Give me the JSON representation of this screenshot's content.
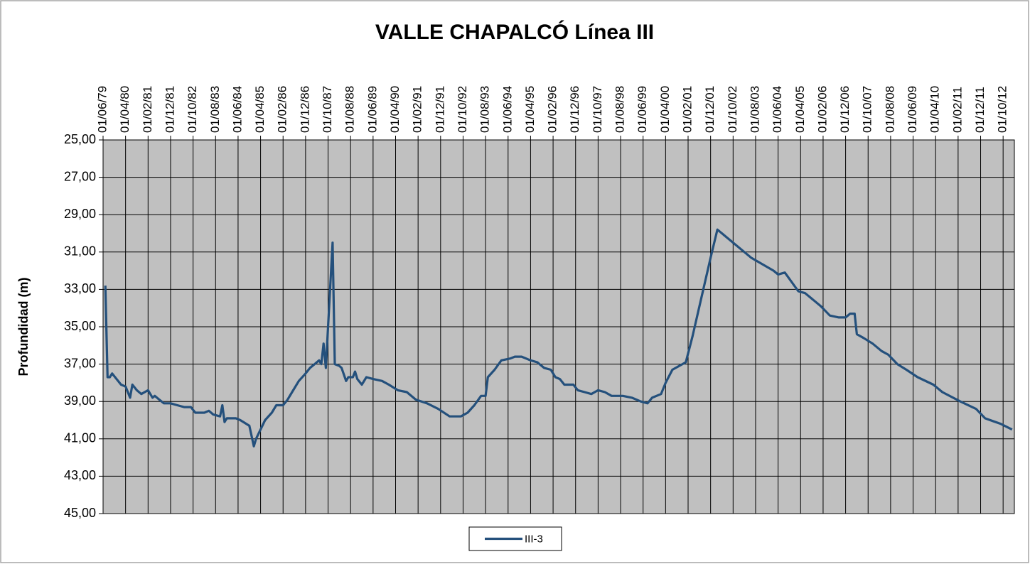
{
  "chart_data": {
    "type": "line",
    "title": "VALLE CHAPALCÓ Línea III",
    "y_label": "Profundidad (m)",
    "y_reversed": true,
    "grid": true,
    "legend": "bottom",
    "ylim": [
      25,
      45
    ],
    "yticks": [
      {
        "value": 25,
        "label": "25,00"
      },
      {
        "value": 27,
        "label": "27,00"
      },
      {
        "value": 29,
        "label": "29,00"
      },
      {
        "value": 31,
        "label": "31,00"
      },
      {
        "value": 33,
        "label": "33,00"
      },
      {
        "value": 35,
        "label": "35,00"
      },
      {
        "value": 37,
        "label": "37,00"
      },
      {
        "value": 39,
        "label": "39,00"
      },
      {
        "value": 41,
        "label": "41,00"
      },
      {
        "value": 43,
        "label": "43,00"
      },
      {
        "value": 45,
        "label": "45,00"
      }
    ],
    "xlim": [
      "01/06/79",
      "01/03/13"
    ],
    "xticks": [
      "01/06/79",
      "01/04/80",
      "01/02/81",
      "01/12/81",
      "01/10/82",
      "01/08/83",
      "01/06/84",
      "01/04/85",
      "01/02/86",
      "01/12/86",
      "01/10/87",
      "01/08/88",
      "01/06/89",
      "01/04/90",
      "01/02/91",
      "01/12/91",
      "01/10/92",
      "01/08/93",
      "01/06/94",
      "01/04/95",
      "01/02/96",
      "01/12/96",
      "01/10/97",
      "01/08/98",
      "01/06/99",
      "01/04/00",
      "01/02/01",
      "01/12/01",
      "01/10/02",
      "01/08/03",
      "01/06/04",
      "01/04/05",
      "01/02/06",
      "01/12/06",
      "01/10/07",
      "01/08/08",
      "01/06/09",
      "01/04/10",
      "01/02/11",
      "01/12/11",
      "01/10/12"
    ],
    "x": [
      "01/07/79",
      "01/08/79",
      "01/09/79",
      "01/10/79",
      "01/12/79",
      "01/02/80",
      "01/04/80",
      "01/06/80",
      "01/07/80",
      "01/09/80",
      "01/11/80",
      "01/02/81",
      "01/04/81",
      "01/05/81",
      "01/07/81",
      "01/09/81",
      "01/12/81",
      "01/03/82",
      "01/06/82",
      "01/09/82",
      "01/11/82",
      "01/03/83",
      "01/05/83",
      "01/07/83",
      "01/10/83",
      "01/11/83",
      "01/12/83",
      "01/01/84",
      "01/05/84",
      "01/07/84",
      "01/11/84",
      "01/01/85",
      "01/02/85",
      "01/06/85",
      "01/09/85",
      "01/11/85",
      "01/02/86",
      "01/04/86",
      "01/06/86",
      "01/09/86",
      "01/12/86",
      "01/02/87",
      "01/04/87",
      "01/06/87",
      "01/07/87",
      "01/08/87",
      "01/09/87",
      "01/12/87",
      "01/01/88",
      "01/03/88",
      "01/04/88",
      "01/06/88",
      "01/07/88",
      "01/09/88",
      "01/10/88",
      "01/11/88",
      "01/01/89",
      "01/03/89",
      "01/06/89",
      "01/10/89",
      "01/01/90",
      "01/05/90",
      "01/09/90",
      "01/01/91",
      "01/06/91",
      "01/11/91",
      "01/04/92",
      "01/09/92",
      "01/12/92",
      "01/03/93",
      "01/06/93",
      "01/08/93",
      "01/09/93",
      "01/12/93",
      "01/03/94",
      "01/07/94",
      "01/09/94",
      "01/12/94",
      "01/04/95",
      "01/07/95",
      "01/10/95",
      "01/01/96",
      "01/03/96",
      "01/05/96",
      "01/07/96",
      "01/11/96",
      "01/01/97",
      "01/04/97",
      "01/07/97",
      "01/10/97",
      "01/01/98",
      "01/04/98",
      "01/09/98",
      "01/01/99",
      "01/05/99",
      "01/08/99",
      "01/10/99",
      "01/02/00",
      "01/04/00",
      "01/07/00",
      "01/01/01",
      "01/04/01",
      "01/08/01",
      "01/12/01",
      "01/03/02",
      "01/06/02",
      "01/06/03",
      "01/04/04",
      "01/06/04",
      "01/09/04",
      "01/03/05",
      "01/06/05",
      "01/10/05",
      "01/01/06",
      "01/05/06",
      "01/09/06",
      "01/12/06",
      "01/02/07",
      "01/04/07",
      "01/05/07",
      "01/08/07",
      "01/12/07",
      "01/04/08",
      "01/07/08",
      "01/11/08",
      "01/03/09",
      "01/08/09",
      "01/03/10",
      "01/07/10",
      "01/03/11",
      "01/10/11",
      "01/02/12",
      "01/09/12",
      "01/02/13"
    ],
    "series": [
      {
        "name": "III-3",
        "color": "#24507c",
        "values": [
          32.8,
          37.7,
          37.7,
          37.5,
          37.8,
          38.1,
          38.2,
          38.8,
          38.1,
          38.4,
          38.6,
          38.4,
          38.8,
          38.7,
          38.9,
          39.1,
          39.1,
          39.2,
          39.3,
          39.3,
          39.6,
          39.6,
          39.5,
          39.7,
          39.8,
          39.2,
          40.1,
          39.9,
          39.9,
          40.0,
          40.3,
          41.4,
          41.0,
          40.0,
          39.6,
          39.2,
          39.2,
          38.9,
          38.5,
          37.9,
          37.5,
          37.2,
          37.0,
          36.8,
          37.0,
          35.9,
          37.2,
          30.5,
          37.0,
          37.1,
          37.2,
          37.9,
          37.7,
          37.7,
          37.4,
          37.8,
          38.1,
          37.7,
          37.8,
          37.9,
          38.1,
          38.4,
          38.5,
          38.9,
          39.1,
          39.4,
          39.8,
          39.8,
          39.6,
          39.2,
          38.7,
          38.7,
          37.7,
          37.3,
          36.8,
          36.7,
          36.6,
          36.6,
          36.8,
          36.9,
          37.2,
          37.3,
          37.7,
          37.8,
          38.1,
          38.1,
          38.4,
          38.5,
          38.6,
          38.4,
          38.5,
          38.7,
          38.7,
          38.8,
          39.0,
          39.1,
          38.8,
          38.6,
          38.0,
          37.3,
          36.9,
          35.5,
          33.4,
          31.3,
          29.8,
          30.1,
          31.3,
          32.0,
          32.2,
          32.1,
          33.1,
          33.2,
          33.6,
          33.9,
          34.4,
          34.5,
          34.5,
          34.3,
          34.3,
          35.4,
          35.6,
          35.9,
          36.3,
          36.5,
          37.0,
          37.3,
          37.7,
          38.1,
          38.5,
          39.0,
          39.4,
          39.9,
          40.2,
          40.5
        ]
      }
    ]
  }
}
